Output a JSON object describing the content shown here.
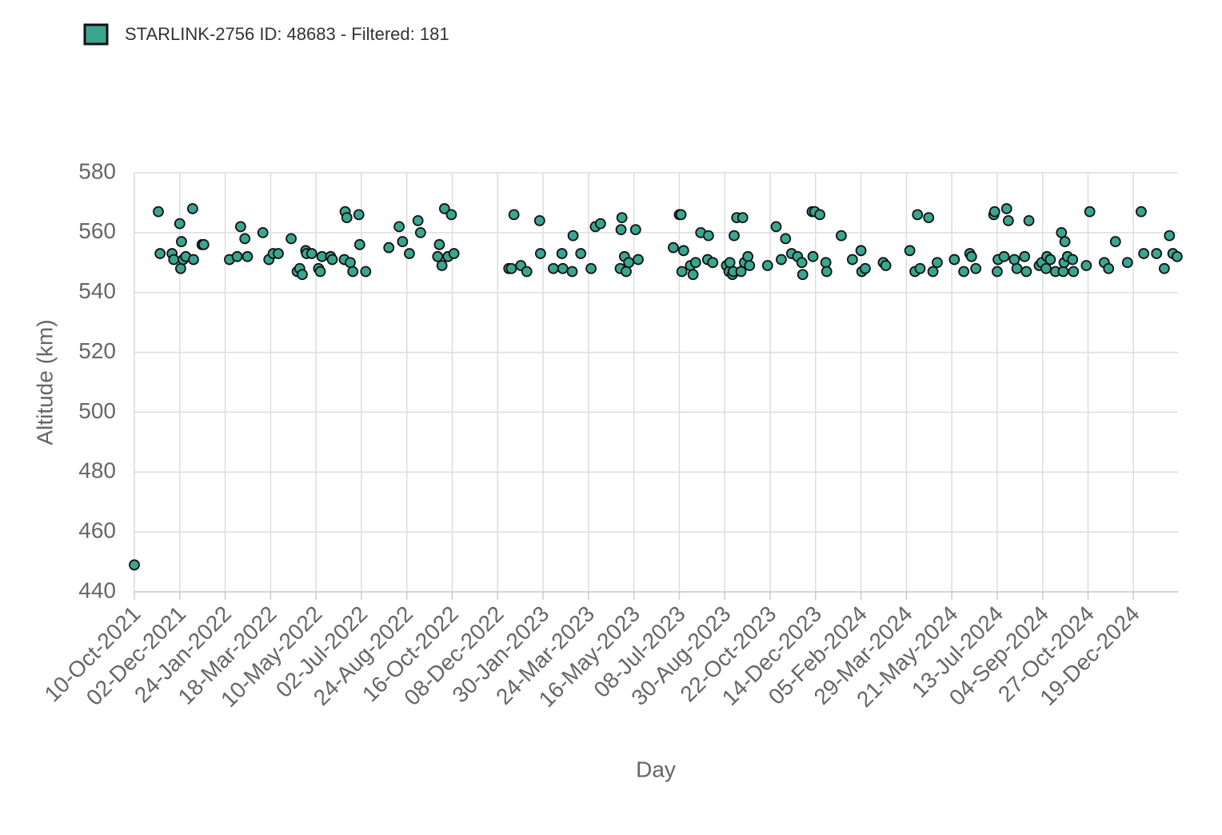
{
  "chart_data": {
    "type": "scatter",
    "series": [
      {
        "name": "STARLINK-2756 ID: 48683 - Filtered: 181",
        "color": "#3aa68f",
        "x": [
          "2021-10-10",
          "2021-11-07",
          "2021-11-09",
          "2021-11-23",
          "2021-11-25",
          "2021-12-02",
          "2021-12-04",
          "2021-12-03",
          "2021-12-06",
          "2021-12-09",
          "2021-12-17",
          "2021-12-18",
          "2021-12-28",
          "2021-12-30",
          "2022-01-29",
          "2022-02-07",
          "2022-02-11",
          "2022-02-16",
          "2022-02-19",
          "2022-03-09",
          "2022-03-16",
          "2022-03-21",
          "2022-03-27",
          "2022-04-11",
          "2022-04-18",
          "2022-04-21",
          "2022-04-24",
          "2022-04-28",
          "2022-04-29",
          "2022-05-05",
          "2022-05-13",
          "2022-05-15",
          "2022-05-17",
          "2022-05-27",
          "2022-05-29",
          "2022-06-12",
          "2022-06-13",
          "2022-06-15",
          "2022-06-19",
          "2022-06-22",
          "2022-06-29",
          "2022-06-30",
          "2022-07-07",
          "2022-08-03",
          "2022-08-15",
          "2022-08-19",
          "2022-08-27",
          "2022-09-06",
          "2022-09-09",
          "2022-09-29",
          "2022-10-01",
          "2022-10-04",
          "2022-10-07",
          "2022-10-11",
          "2022-10-15",
          "2022-10-18",
          "2022-12-21",
          "2022-12-24",
          "2022-12-27",
          "2023-01-04",
          "2023-01-11",
          "2023-01-26",
          "2023-01-27",
          "2023-02-11",
          "2023-02-21",
          "2023-02-22",
          "2023-03-05",
          "2023-03-06",
          "2023-03-15",
          "2023-03-27",
          "2023-04-01",
          "2023-04-07",
          "2023-04-30",
          "2023-05-01",
          "2023-05-02",
          "2023-05-05",
          "2023-05-07",
          "2023-05-10",
          "2023-05-18",
          "2023-05-21",
          "2023-07-01",
          "2023-07-08",
          "2023-07-10",
          "2023-07-11",
          "2023-07-13",
          "2023-07-21",
          "2023-07-24",
          "2023-07-27",
          "2023-08-02",
          "2023-08-10",
          "2023-08-11",
          "2023-08-16",
          "2023-09-01",
          "2023-09-04",
          "2023-09-05",
          "2023-09-08",
          "2023-09-09",
          "2023-09-10",
          "2023-09-13",
          "2023-09-18",
          "2023-09-20",
          "2023-09-22",
          "2023-09-26",
          "2023-09-28",
          "2023-10-19",
          "2023-10-29",
          "2023-11-04",
          "2023-11-09",
          "2023-11-16",
          "2023-11-23",
          "2023-11-28",
          "2023-11-29",
          "2023-12-10",
          "2023-12-11",
          "2023-12-13",
          "2023-12-19",
          "2023-12-26",
          "2023-12-27",
          "2024-01-13",
          "2024-01-26",
          "2024-02-05",
          "2024-02-06",
          "2024-02-10",
          "2024-03-02",
          "2024-03-05",
          "2024-04-02",
          "2024-04-08",
          "2024-04-11",
          "2024-04-14",
          "2024-04-24",
          "2024-04-29",
          "2024-05-04",
          "2024-05-24",
          "2024-06-04",
          "2024-06-11",
          "2024-06-13",
          "2024-06-18",
          "2024-07-09",
          "2024-07-10",
          "2024-07-13",
          "2024-07-14",
          "2024-07-21",
          "2024-07-24",
          "2024-07-26",
          "2024-08-02",
          "2024-08-05",
          "2024-08-14",
          "2024-08-16",
          "2024-08-19",
          "2024-08-31",
          "2024-09-03",
          "2024-09-08",
          "2024-09-09",
          "2024-09-13",
          "2024-09-19",
          "2024-09-26",
          "2024-09-28",
          "2024-09-29",
          "2024-09-30",
          "2024-10-03",
          "2024-10-09",
          "2024-10-10",
          "2024-10-25",
          "2024-10-29",
          "2024-11-15",
          "2024-11-20",
          "2024-11-28",
          "2024-12-12",
          "2024-12-28",
          "2024-12-31",
          "2025-01-15",
          "2025-01-24",
          "2025-01-30",
          "2025-02-03",
          "2025-02-08"
        ],
        "values": [
          449,
          567,
          553,
          553,
          551,
          563,
          557,
          548,
          551,
          552,
          568,
          551,
          556,
          556,
          551,
          552,
          562,
          558,
          552,
          560,
          551,
          553,
          553,
          558,
          547,
          548,
          546,
          554,
          553,
          553,
          548,
          547,
          552,
          552,
          551,
          551,
          567,
          565,
          550,
          547,
          566,
          556,
          547,
          555,
          562,
          557,
          553,
          564,
          560,
          552,
          556,
          549,
          568,
          552,
          566,
          553,
          548,
          548,
          566,
          549,
          547,
          564,
          553,
          548,
          553,
          548,
          547,
          559,
          553,
          548,
          562,
          563,
          548,
          561,
          565,
          552,
          547,
          550,
          561,
          551,
          555,
          566,
          566,
          547,
          554,
          549,
          546,
          550,
          560,
          551,
          559,
          550,
          549,
          547,
          550,
          546,
          547,
          559,
          565,
          547,
          565,
          550,
          552,
          549,
          549,
          562,
          551,
          558,
          553,
          552,
          550,
          546,
          567,
          552,
          567,
          566,
          550,
          547,
          559,
          551,
          554,
          547,
          548,
          550,
          549,
          554,
          547,
          566,
          548,
          565,
          547,
          550,
          551,
          547,
          553,
          552,
          548,
          566,
          567,
          547,
          551,
          552,
          568,
          564,
          551,
          548,
          552,
          547,
          564,
          549,
          550,
          548,
          552,
          551,
          547,
          560,
          547,
          550,
          557,
          552,
          551,
          547,
          549,
          567,
          550,
          548,
          557,
          550,
          567,
          553,
          553,
          548,
          559,
          553,
          552
        ]
      }
    ],
    "xlabel": "Day",
    "ylabel": "Altitude (km)",
    "xlim": [
      "2021-10-10",
      "2025-02-09"
    ],
    "xticks": [
      {
        "value": "2021-10-10",
        "label": "10-Oct-2021"
      },
      {
        "value": "2021-12-02",
        "label": "02-Dec-2021"
      },
      {
        "value": "2022-01-24",
        "label": "24-Jan-2022"
      },
      {
        "value": "2022-03-18",
        "label": "18-Mar-2022"
      },
      {
        "value": "2022-05-10",
        "label": "10-May-2022"
      },
      {
        "value": "2022-07-02",
        "label": "02-Jul-2022"
      },
      {
        "value": "2022-08-24",
        "label": "24-Aug-2022"
      },
      {
        "value": "2022-10-16",
        "label": "16-Oct-2022"
      },
      {
        "value": "2022-12-08",
        "label": "08-Dec-2022"
      },
      {
        "value": "2023-01-30",
        "label": "30-Jan-2023"
      },
      {
        "value": "2023-03-24",
        "label": "24-Mar-2023"
      },
      {
        "value": "2023-05-16",
        "label": "16-May-2023"
      },
      {
        "value": "2023-07-08",
        "label": "08-Jul-2023"
      },
      {
        "value": "2023-08-30",
        "label": "30-Aug-2023"
      },
      {
        "value": "2023-10-22",
        "label": "22-Oct-2023"
      },
      {
        "value": "2023-12-14",
        "label": "14-Dec-2023"
      },
      {
        "value": "2024-02-05",
        "label": "05-Feb-2024"
      },
      {
        "value": "2024-03-29",
        "label": "29-Mar-2024"
      },
      {
        "value": "2024-05-21",
        "label": "21-May-2024"
      },
      {
        "value": "2024-07-13",
        "label": "13-Jul-2024"
      },
      {
        "value": "2024-09-04",
        "label": "04-Sep-2024"
      },
      {
        "value": "2024-10-27",
        "label": "27-Oct-2024"
      },
      {
        "value": "2024-12-19",
        "label": "19-Dec-2024"
      }
    ],
    "ylim": [
      440,
      580
    ],
    "yticks": [
      440,
      460,
      480,
      500,
      520,
      540,
      560,
      580
    ],
    "grid": true,
    "legend": "top-left"
  }
}
